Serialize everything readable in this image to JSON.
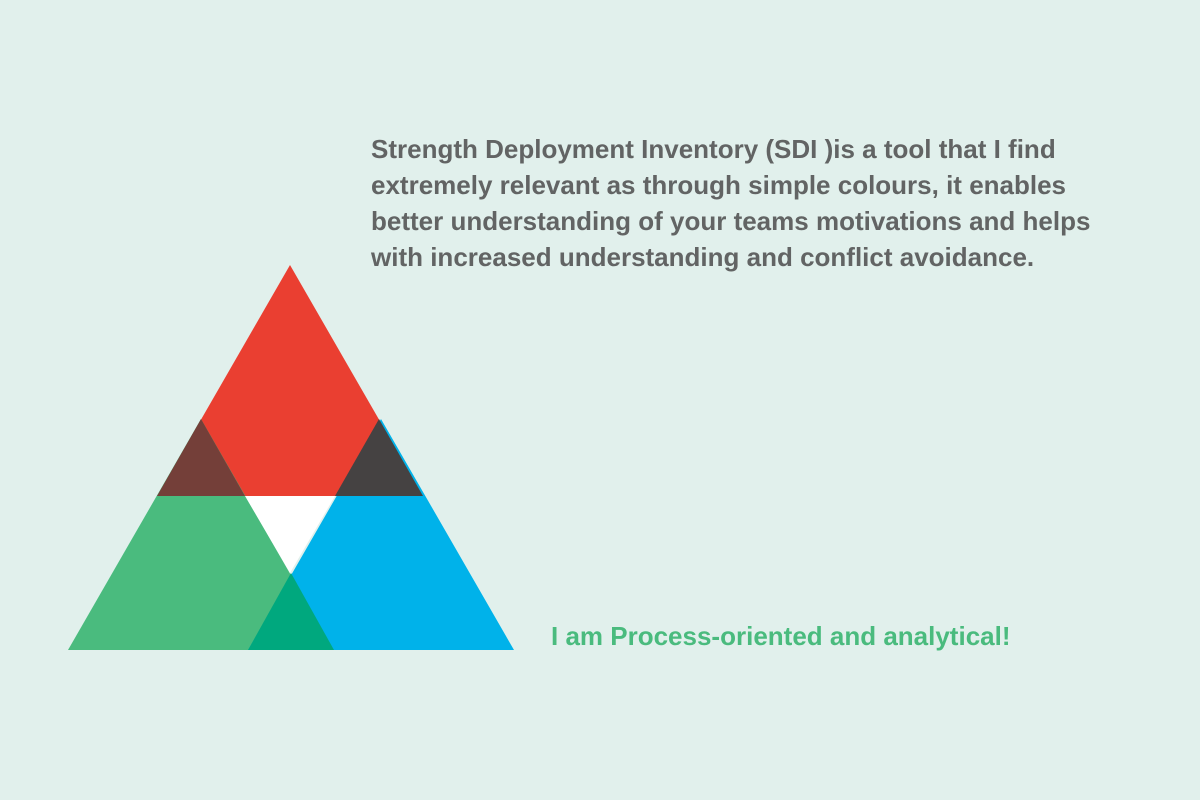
{
  "colors": {
    "background": "#e1f0ec",
    "red": "#ea3f31",
    "green": "#4abb7e",
    "blue": "#00b2ea",
    "red_green_overlap": "#743f39",
    "red_blue_overlap": "#454242",
    "green_blue_overlap": "#00a87e",
    "center_gap": "#ffffff",
    "body_text": "#626464",
    "tagline_text": "#4abb7e"
  },
  "description_text": "Strength Deployment Inventory (SDI )is a tool that I find extremely relevant as through simple colours, it enables better understanding of your teams motivations and helps with increased understanding and conflict avoidance.",
  "tagline": "I am Process-oriented and analytical!"
}
